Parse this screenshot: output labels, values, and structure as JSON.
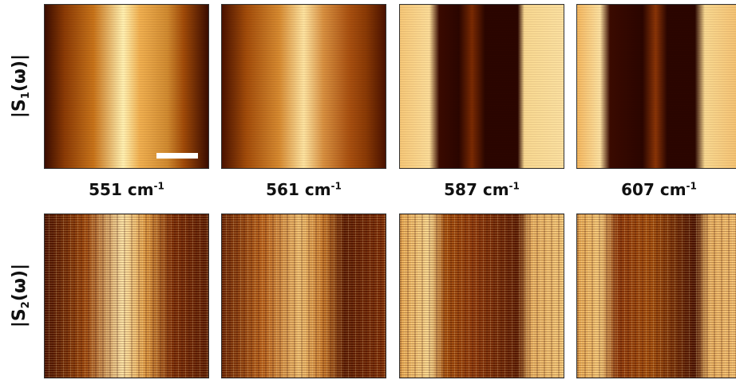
{
  "rows": [
    {
      "prefix": "|S",
      "subscript": "1",
      "suffix": "(ω)|"
    },
    {
      "prefix": "|S",
      "subscript": "2",
      "suffix": "(ω)|"
    }
  ],
  "columns": [
    {
      "value": "551 cm",
      "exponent": "-1"
    },
    {
      "value": "561 cm",
      "exponent": "-1"
    },
    {
      "value": "587 cm",
      "exponent": "-1"
    },
    {
      "value": "607 cm",
      "exponent": "-1"
    }
  ]
}
